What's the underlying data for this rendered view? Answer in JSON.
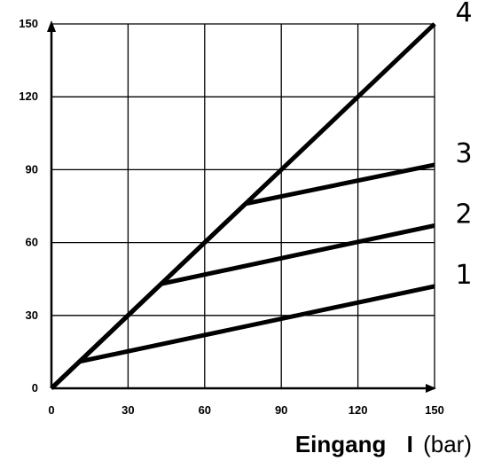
{
  "chart_data": {
    "type": "line",
    "xlim": [
      0,
      150
    ],
    "ylim": [
      0,
      150
    ],
    "x_ticks": [
      0,
      30,
      60,
      90,
      120,
      150
    ],
    "y_ticks": [
      0,
      30,
      60,
      90,
      120,
      150
    ],
    "grid": true,
    "xlabel": {
      "bold_part": "Eingang",
      "bold_symbol": "I",
      "unit": "(bar)"
    },
    "series": [
      {
        "name": "1",
        "x": [
          0,
          11,
          150
        ],
        "y": [
          0,
          11,
          42
        ]
      },
      {
        "name": "2",
        "x": [
          0,
          43,
          150
        ],
        "y": [
          0,
          43,
          67
        ]
      },
      {
        "name": "3",
        "x": [
          0,
          76,
          150
        ],
        "y": [
          0,
          76,
          92
        ]
      },
      {
        "name": "4",
        "x": [
          0,
          150
        ],
        "y": [
          0,
          150
        ]
      }
    ]
  }
}
